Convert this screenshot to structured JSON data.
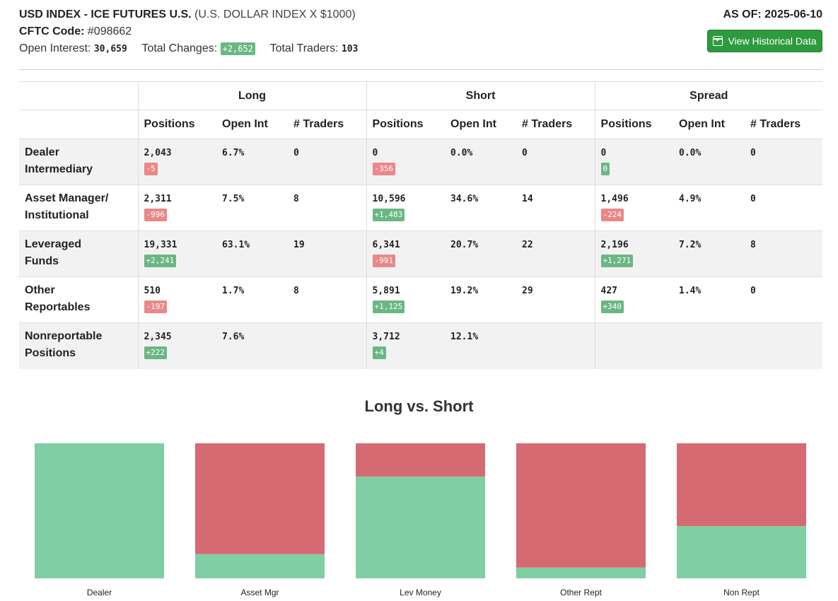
{
  "header": {
    "title": "USD INDEX - ICE FUTURES U.S.",
    "subtitle": "(U.S. DOLLAR INDEX X $1000)",
    "code_label": "CFTC Code:",
    "code_value": "#098662",
    "oi_label": "Open Interest:",
    "oi_value": "30,659",
    "changes_label": "Total Changes:",
    "changes_value": "+2,652",
    "traders_label": "Total Traders:",
    "traders_value": "103",
    "as_of": "AS OF: 2025-06-10",
    "history_button": "View Historical Data"
  },
  "table": {
    "groups": [
      "Long",
      "Short",
      "Spread"
    ],
    "subheaders": [
      "Positions",
      "Open Int",
      "# Traders"
    ],
    "rows": [
      {
        "label1": "Dealer",
        "label2": "Intermediary",
        "long": {
          "positions": "2,043",
          "change": "-5",
          "change_sign": "neg",
          "open_int": "6.7%",
          "traders": "0"
        },
        "short": {
          "positions": "0",
          "change": "-356",
          "change_sign": "neg",
          "open_int": "0.0%",
          "traders": "0"
        },
        "spread": {
          "positions": "0",
          "change": "0",
          "change_sign": "pos",
          "open_int": "0.0%",
          "traders": "0"
        }
      },
      {
        "label1": "Asset Manager/",
        "label2": "Institutional",
        "long": {
          "positions": "2,311",
          "change": "-996",
          "change_sign": "neg",
          "open_int": "7.5%",
          "traders": "8"
        },
        "short": {
          "positions": "10,596",
          "change": "+1,483",
          "change_sign": "pos",
          "open_int": "34.6%",
          "traders": "14"
        },
        "spread": {
          "positions": "1,496",
          "change": "-224",
          "change_sign": "neg",
          "open_int": "4.9%",
          "traders": "0"
        }
      },
      {
        "label1": "Leveraged",
        "label2": "Funds",
        "long": {
          "positions": "19,331",
          "change": "+2,241",
          "change_sign": "pos",
          "open_int": "63.1%",
          "traders": "19"
        },
        "short": {
          "positions": "6,341",
          "change": "-991",
          "change_sign": "neg",
          "open_int": "20.7%",
          "traders": "22"
        },
        "spread": {
          "positions": "2,196",
          "change": "+1,271",
          "change_sign": "pos",
          "open_int": "7.2%",
          "traders": "8"
        }
      },
      {
        "label1": "Other",
        "label2": "Reportables",
        "long": {
          "positions": "510",
          "change": "-197",
          "change_sign": "neg",
          "open_int": "1.7%",
          "traders": "8"
        },
        "short": {
          "positions": "5,891",
          "change": "+1,125",
          "change_sign": "pos",
          "open_int": "19.2%",
          "traders": "29"
        },
        "spread": {
          "positions": "427",
          "change": "+340",
          "change_sign": "pos",
          "open_int": "1.4%",
          "traders": "0"
        }
      },
      {
        "label1": "Nonreportable",
        "label2": "Positions",
        "long": {
          "positions": "2,345",
          "change": "+222",
          "change_sign": "pos",
          "open_int": "7.6%",
          "traders": ""
        },
        "short": {
          "positions": "3,712",
          "change": "+4",
          "change_sign": "pos",
          "open_int": "12.1%",
          "traders": ""
        },
        "spread": null
      }
    ]
  },
  "chart_title": "Long vs. Short",
  "chart_data": {
    "type": "bar",
    "stacked": true,
    "normalized": true,
    "categories": [
      "Dealer",
      "Asset Mgr",
      "Lev Money",
      "Other Rept",
      "Non Rept"
    ],
    "series": [
      {
        "key": "long",
        "values": [
          2043,
          2311,
          19331,
          510,
          2345
        ],
        "color": "#80ceA3"
      },
      {
        "key": "short",
        "values": [
          0,
          10596,
          6341,
          5891,
          3712
        ],
        "color": "#d66a72"
      }
    ]
  },
  "colors": {
    "button": "#2e9a3e",
    "positive_badge": "#6bb784",
    "negative_badge": "#e98887",
    "row_shade": "#f2f2f2"
  }
}
